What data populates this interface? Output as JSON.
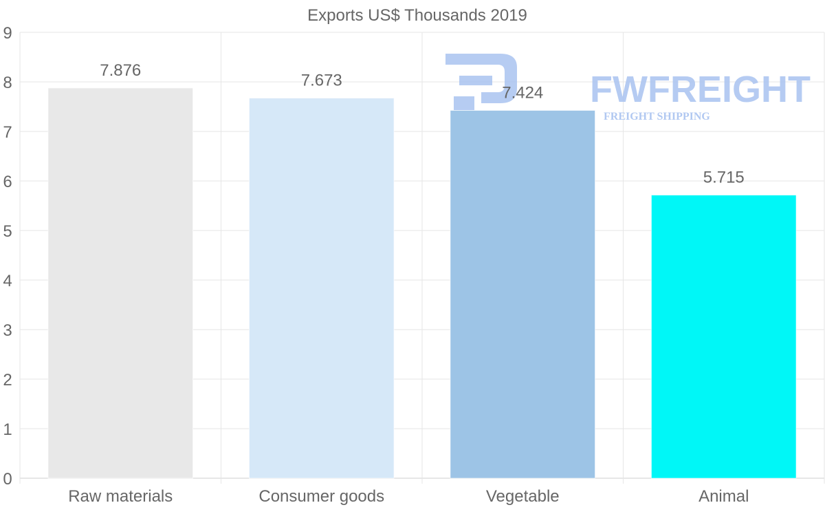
{
  "chart_data": {
    "type": "bar",
    "title": "Exports US$ Thousands 2019",
    "categories": [
      "Raw materials",
      "Consumer goods",
      "Vegetable",
      "Animal"
    ],
    "values": [
      7.876,
      7.673,
      7.424,
      5.715
    ],
    "value_labels": [
      "7.876",
      "7.673",
      "7.424",
      "5.715"
    ],
    "colors": [
      "#e8e8e8",
      "#d6e8f8",
      "#9dc4e6",
      "#00f7f7"
    ],
    "ylim": [
      0,
      9
    ],
    "yticks": [
      "0",
      "1",
      "2",
      "3",
      "4",
      "5",
      "6",
      "7",
      "8",
      "9"
    ],
    "grid": true,
    "xlabel": "",
    "ylabel": ""
  },
  "watermark": {
    "brand": "FWFREIGHT",
    "tagline": "FREIGHT SHIPPING",
    "color": "#a9c3f0"
  }
}
